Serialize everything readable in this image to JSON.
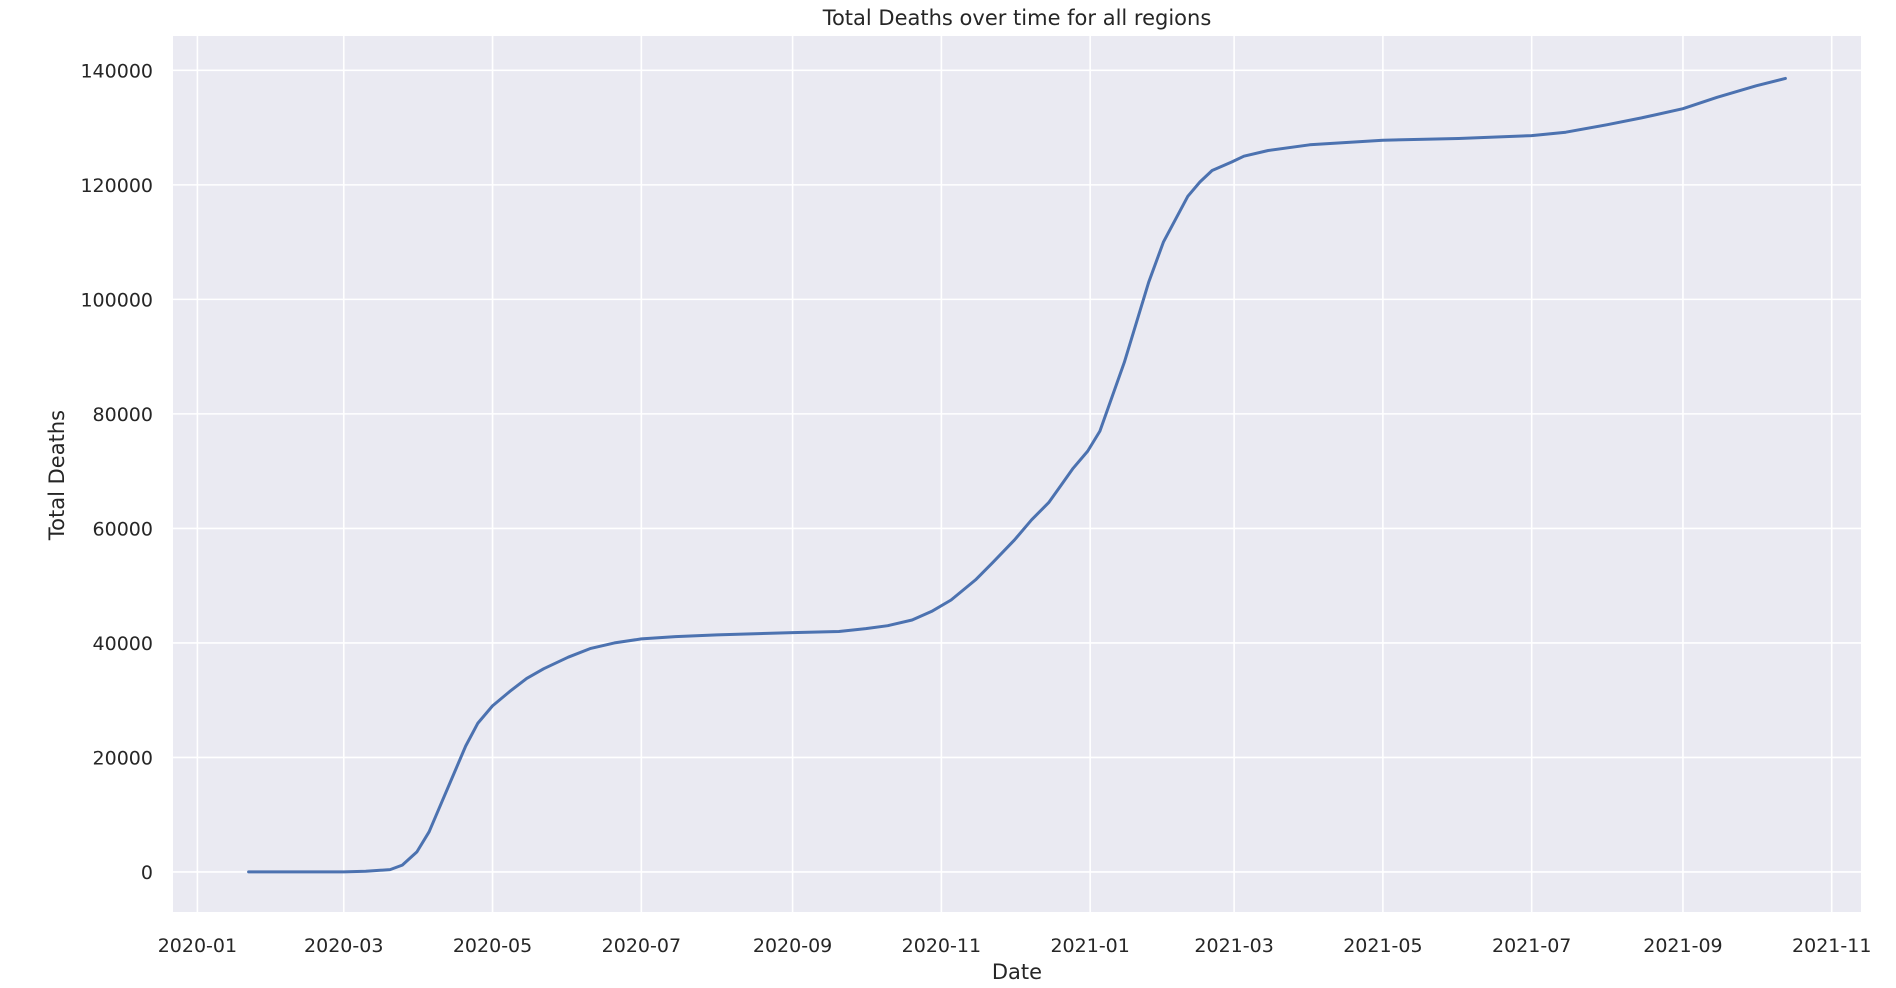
{
  "chart_data": {
    "type": "line",
    "title": "Total Deaths over time for all regions",
    "xlabel": "Date",
    "ylabel": "Total Deaths",
    "x_axis_type": "date",
    "xlim": [
      "2019-12-22",
      "2021-11-13"
    ],
    "ylim": [
      -7000,
      146000
    ],
    "grid": true,
    "style": "seaborn-darkgrid",
    "colors": {
      "background": "#eaeaf2",
      "grid": "#ffffff",
      "line": "#4c72b0",
      "text": "#262626"
    },
    "x_ticks": [
      {
        "date": "2020-01-01",
        "label": "2020-01"
      },
      {
        "date": "2020-03-01",
        "label": "2020-03"
      },
      {
        "date": "2020-05-01",
        "label": "2020-05"
      },
      {
        "date": "2020-07-01",
        "label": "2020-07"
      },
      {
        "date": "2020-09-01",
        "label": "2020-09"
      },
      {
        "date": "2020-11-01",
        "label": "2020-11"
      },
      {
        "date": "2021-01-01",
        "label": "2021-01"
      },
      {
        "date": "2021-03-01",
        "label": "2021-03"
      },
      {
        "date": "2021-05-01",
        "label": "2021-05"
      },
      {
        "date": "2021-07-01",
        "label": "2021-07"
      },
      {
        "date": "2021-09-01",
        "label": "2021-09"
      },
      {
        "date": "2021-11-01",
        "label": "2021-11"
      }
    ],
    "y_ticks": [
      {
        "value": 0,
        "label": "0"
      },
      {
        "value": 20000,
        "label": "20000"
      },
      {
        "value": 40000,
        "label": "40000"
      },
      {
        "value": 60000,
        "label": "60000"
      },
      {
        "value": 80000,
        "label": "80000"
      },
      {
        "value": 100000,
        "label": "100000"
      },
      {
        "value": 120000,
        "label": "120000"
      },
      {
        "value": 140000,
        "label": "140000"
      }
    ],
    "series": [
      {
        "points": [
          [
            "2020-01-22",
            0
          ],
          [
            "2020-02-15",
            0
          ],
          [
            "2020-03-01",
            0
          ],
          [
            "2020-03-10",
            100
          ],
          [
            "2020-03-20",
            400
          ],
          [
            "2020-03-25",
            1200
          ],
          [
            "2020-03-31",
            3500
          ],
          [
            "2020-04-05",
            7000
          ],
          [
            "2020-04-10",
            12000
          ],
          [
            "2020-04-15",
            17000
          ],
          [
            "2020-04-20",
            22000
          ],
          [
            "2020-04-25",
            26000
          ],
          [
            "2020-05-01",
            29000
          ],
          [
            "2020-05-08",
            31500
          ],
          [
            "2020-05-15",
            33800
          ],
          [
            "2020-05-22",
            35500
          ],
          [
            "2020-06-01",
            37500
          ],
          [
            "2020-06-10",
            39000
          ],
          [
            "2020-06-20",
            40000
          ],
          [
            "2020-07-01",
            40700
          ],
          [
            "2020-07-15",
            41100
          ],
          [
            "2020-08-01",
            41400
          ],
          [
            "2020-09-01",
            41800
          ],
          [
            "2020-09-20",
            42000
          ],
          [
            "2020-10-01",
            42500
          ],
          [
            "2020-10-10",
            43000
          ],
          [
            "2020-10-20",
            44000
          ],
          [
            "2020-10-28",
            45500
          ],
          [
            "2020-11-05",
            47500
          ],
          [
            "2020-11-15",
            51000
          ],
          [
            "2020-11-22",
            54000
          ],
          [
            "2020-12-01",
            58000
          ],
          [
            "2020-12-08",
            61500
          ],
          [
            "2020-12-15",
            64500
          ],
          [
            "2020-12-20",
            67500
          ],
          [
            "2020-12-25",
            70500
          ],
          [
            "2020-12-31",
            73500
          ],
          [
            "2021-01-05",
            77000
          ],
          [
            "2021-01-10",
            83000
          ],
          [
            "2021-01-15",
            89000
          ],
          [
            "2021-01-20",
            96000
          ],
          [
            "2021-01-25",
            103000
          ],
          [
            "2021-01-31",
            110000
          ],
          [
            "2021-02-05",
            114000
          ],
          [
            "2021-02-10",
            118000
          ],
          [
            "2021-02-15",
            120500
          ],
          [
            "2021-02-20",
            122500
          ],
          [
            "2021-02-28",
            124000
          ],
          [
            "2021-03-05",
            125000
          ],
          [
            "2021-03-15",
            126000
          ],
          [
            "2021-04-01",
            127000
          ],
          [
            "2021-05-01",
            127800
          ],
          [
            "2021-06-01",
            128100
          ],
          [
            "2021-07-01",
            128600
          ],
          [
            "2021-07-15",
            129200
          ],
          [
            "2021-08-01",
            130500
          ],
          [
            "2021-08-15",
            131700
          ],
          [
            "2021-09-01",
            133300
          ],
          [
            "2021-09-15",
            135300
          ],
          [
            "2021-10-01",
            137300
          ],
          [
            "2021-10-13",
            138600
          ]
        ]
      }
    ]
  }
}
